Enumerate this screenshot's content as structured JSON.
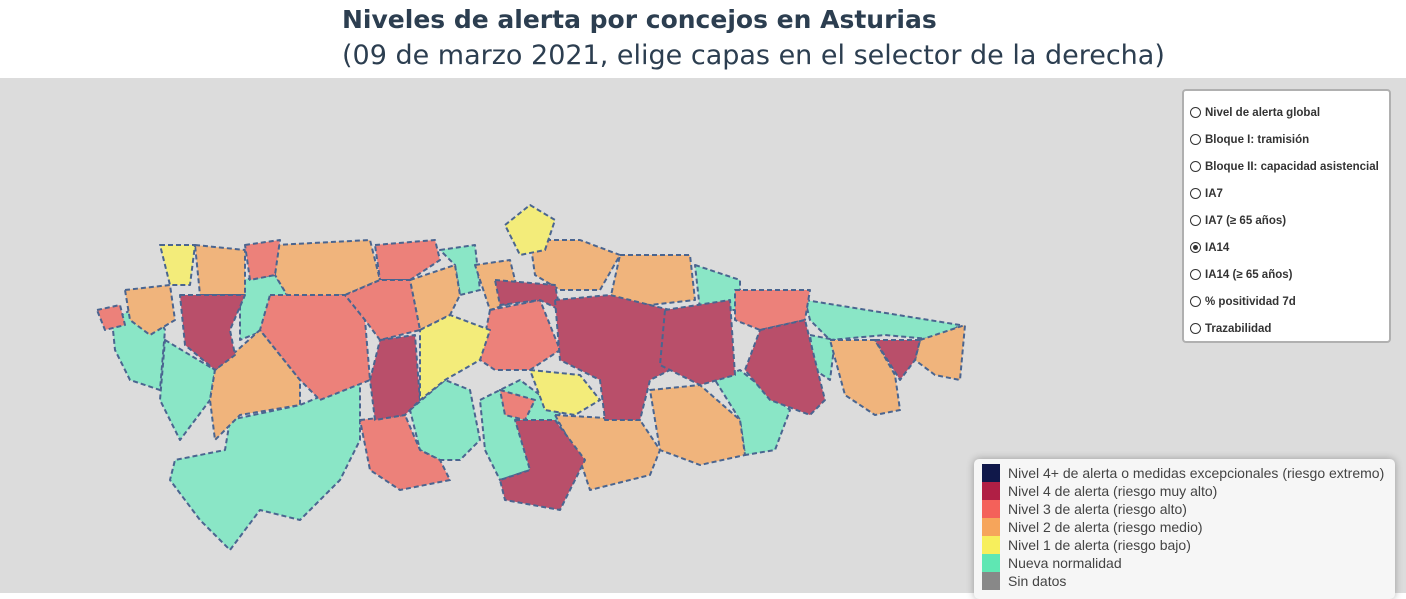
{
  "header": {
    "title": "Niveles de alerta por concejos en Asturias",
    "subtitle": "(09 de marzo 2021, elige capas en el selector de la derecha)"
  },
  "layers": {
    "options": [
      "Nivel de alerta global",
      "Bloque I: tramisión",
      "Bloque II: capacidad asistencial",
      "IA7",
      "IA7 (≥ 65 años)",
      "IA14",
      "IA14 (≥ 65 años)",
      "% positividad 7d",
      "Trazabilidad"
    ],
    "selected": 5
  },
  "legend": {
    "items": [
      {
        "label": "Nivel 4+ de alerta o medidas excepcionales (riesgo extremo)",
        "color": "#10184a"
      },
      {
        "label": "Nivel 4 de alerta (riesgo muy alto)",
        "color": "#b01f45"
      },
      {
        "label": "Nivel 3 de alerta (riesgo alto)",
        "color": "#f4615a"
      },
      {
        "label": "Nivel 2 de alerta (riesgo medio)",
        "color": "#f6a55b"
      },
      {
        "label": "Nivel 1 de alerta (riesgo bajo)",
        "color": "#f7ef5c"
      },
      {
        "label": "Nueva normalidad",
        "color": "#5fe7b3"
      },
      {
        "label": "Sin datos",
        "color": "#888888"
      }
    ]
  }
}
